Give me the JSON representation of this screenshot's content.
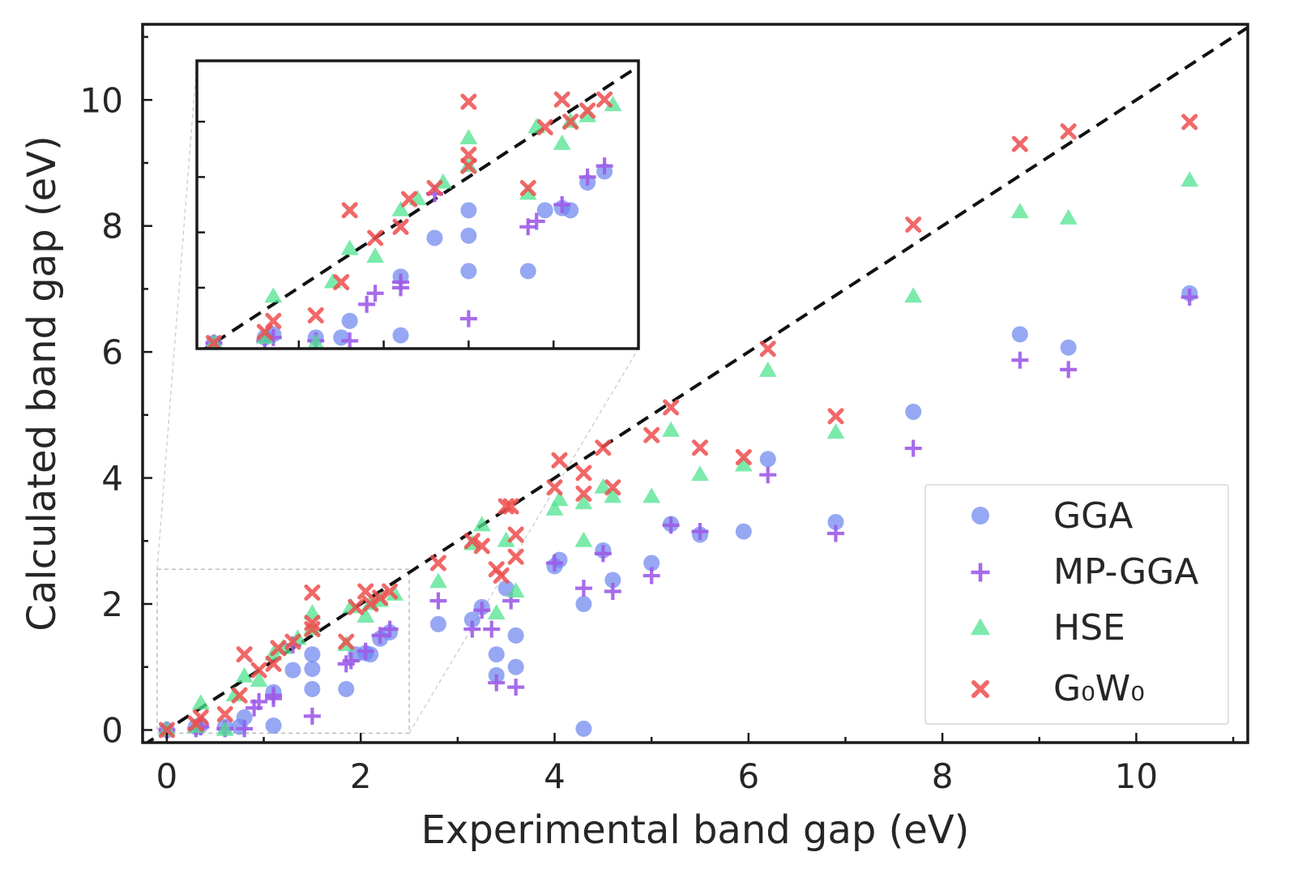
{
  "chart_data": {
    "type": "scatter",
    "title": "",
    "xlabel": "Experimental band gap (eV)",
    "ylabel": "Calculated band gap (eV)",
    "xlim": [
      -0.25,
      11.15
    ],
    "ylim": [
      -0.2,
      11.2
    ],
    "xticks": [
      0,
      2,
      4,
      6,
      8,
      10
    ],
    "yticks": [
      0,
      2,
      4,
      6,
      8,
      10
    ],
    "diagonal": "y = x (dashed)",
    "legend_position": "lower-right",
    "colors": {
      "GGA": "#6e86ee",
      "MP-GGA": "#9d5be8",
      "HSE": "#4fe38f",
      "G0W0": "#ee4d4d"
    },
    "series": [
      {
        "name": "GGA",
        "label": "GGA",
        "marker": "circle",
        "points": [
          [
            0,
            0
          ],
          [
            0.3,
            0.05
          ],
          [
            0.35,
            0.08
          ],
          [
            0.6,
            0.05
          ],
          [
            0.75,
            0.05
          ],
          [
            0.8,
            0.2
          ],
          [
            1.1,
            0.6
          ],
          [
            1.1,
            0.07
          ],
          [
            1.3,
            0.95
          ],
          [
            1.5,
            1.2
          ],
          [
            1.5,
            0.97
          ],
          [
            1.5,
            0.65
          ],
          [
            1.85,
            0.65
          ],
          [
            1.95,
            1.2
          ],
          [
            2.05,
            1.22
          ],
          [
            2.1,
            1.2
          ],
          [
            2.2,
            1.45
          ],
          [
            2.3,
            1.55
          ],
          [
            2.8,
            1.68
          ],
          [
            3.15,
            1.75
          ],
          [
            3.25,
            1.95
          ],
          [
            3.4,
            1.2
          ],
          [
            3.4,
            0.87
          ],
          [
            3.5,
            2.25
          ],
          [
            3.6,
            1.5
          ],
          [
            3.6,
            1.0
          ],
          [
            4.0,
            2.6
          ],
          [
            4.05,
            2.7
          ],
          [
            4.3,
            2.0
          ],
          [
            4.3,
            0.02
          ],
          [
            4.5,
            2.85
          ],
          [
            4.6,
            2.38
          ],
          [
            5.0,
            2.65
          ],
          [
            5.2,
            3.27
          ],
          [
            5.5,
            3.1
          ],
          [
            5.95,
            3.15
          ],
          [
            6.2,
            4.3
          ],
          [
            6.9,
            3.3
          ],
          [
            7.7,
            5.05
          ],
          [
            8.8,
            6.28
          ],
          [
            9.3,
            6.07
          ],
          [
            10.55,
            6.93
          ]
        ]
      },
      {
        "name": "MP-GGA",
        "label": "MP-GGA",
        "marker": "plus",
        "points": [
          [
            0,
            0
          ],
          [
            0.3,
            0.02
          ],
          [
            0.35,
            0.05
          ],
          [
            0.6,
            0.02
          ],
          [
            0.8,
            0.02
          ],
          [
            0.9,
            0.35
          ],
          [
            0.95,
            0.45
          ],
          [
            1.1,
            0.55
          ],
          [
            1.1,
            0.5
          ],
          [
            1.3,
            1.35
          ],
          [
            1.5,
            0.22
          ],
          [
            1.85,
            1.05
          ],
          [
            1.9,
            1.1
          ],
          [
            2.05,
            1.25
          ],
          [
            2.2,
            1.5
          ],
          [
            2.3,
            1.6
          ],
          [
            2.8,
            2.05
          ],
          [
            3.15,
            1.6
          ],
          [
            3.25,
            1.9
          ],
          [
            3.35,
            1.6
          ],
          [
            3.4,
            0.75
          ],
          [
            3.55,
            2.05
          ],
          [
            3.6,
            0.68
          ],
          [
            4.0,
            2.65
          ],
          [
            4.3,
            2.25
          ],
          [
            4.5,
            2.8
          ],
          [
            4.6,
            2.2
          ],
          [
            5.0,
            2.45
          ],
          [
            5.2,
            3.25
          ],
          [
            5.5,
            3.15
          ],
          [
            6.2,
            4.05
          ],
          [
            6.9,
            3.12
          ],
          [
            7.7,
            4.47
          ],
          [
            8.8,
            5.87
          ],
          [
            9.3,
            5.72
          ],
          [
            10.55,
            6.87
          ]
        ]
      },
      {
        "name": "HSE",
        "label": "HSE",
        "marker": "triangle",
        "points": [
          [
            0,
            0
          ],
          [
            0.3,
            0.05
          ],
          [
            0.35,
            0.42
          ],
          [
            0.6,
            0
          ],
          [
            0.7,
            0.55
          ],
          [
            0.8,
            0.85
          ],
          [
            0.95,
            0.78
          ],
          [
            1.1,
            1.2
          ],
          [
            1.2,
            1.3
          ],
          [
            1.35,
            1.45
          ],
          [
            1.5,
            1.85
          ],
          [
            1.5,
            1.6
          ],
          [
            1.85,
            1.35
          ],
          [
            1.9,
            1.95
          ],
          [
            2.05,
            1.8
          ],
          [
            2.1,
            2.0
          ],
          [
            2.2,
            2.05
          ],
          [
            2.35,
            2.15
          ],
          [
            2.8,
            2.35
          ],
          [
            3.15,
            2.95
          ],
          [
            3.25,
            3.25
          ],
          [
            3.4,
            1.85
          ],
          [
            3.5,
            3.0
          ],
          [
            3.6,
            2.2
          ],
          [
            4.0,
            3.5
          ],
          [
            4.05,
            3.65
          ],
          [
            4.3,
            3.0
          ],
          [
            4.3,
            3.6
          ],
          [
            4.5,
            3.85
          ],
          [
            4.6,
            3.7
          ],
          [
            5.0,
            3.7
          ],
          [
            5.2,
            4.75
          ],
          [
            5.5,
            4.05
          ],
          [
            5.95,
            4.2
          ],
          [
            6.2,
            5.7
          ],
          [
            6.9,
            4.72
          ],
          [
            7.7,
            6.88
          ],
          [
            8.8,
            8.22
          ],
          [
            9.3,
            8.12
          ],
          [
            10.55,
            8.72
          ]
        ]
      },
      {
        "name": "G0W0",
        "label": "G₀W₀",
        "marker": "x",
        "points": [
          [
            0,
            0
          ],
          [
            0.3,
            0.1
          ],
          [
            0.35,
            0.2
          ],
          [
            0.6,
            0.25
          ],
          [
            0.75,
            0.55
          ],
          [
            0.8,
            1.2
          ],
          [
            0.95,
            0.95
          ],
          [
            1.1,
            1.05
          ],
          [
            1.15,
            1.3
          ],
          [
            1.3,
            1.4
          ],
          [
            1.5,
            2.18
          ],
          [
            1.5,
            1.7
          ],
          [
            1.5,
            1.6
          ],
          [
            1.85,
            1.4
          ],
          [
            1.95,
            1.95
          ],
          [
            2.05,
            2.2
          ],
          [
            2.1,
            2.0
          ],
          [
            2.2,
            2.1
          ],
          [
            2.3,
            2.2
          ],
          [
            2.8,
            2.65
          ],
          [
            3.15,
            3.0
          ],
          [
            3.25,
            2.92
          ],
          [
            3.4,
            2.55
          ],
          [
            3.45,
            2.45
          ],
          [
            3.5,
            3.55
          ],
          [
            3.55,
            3.55
          ],
          [
            3.6,
            3.1
          ],
          [
            3.6,
            2.75
          ],
          [
            4.0,
            3.85
          ],
          [
            4.05,
            4.28
          ],
          [
            4.3,
            4.08
          ],
          [
            4.3,
            3.75
          ],
          [
            4.5,
            4.48
          ],
          [
            4.6,
            3.85
          ],
          [
            5.0,
            4.68
          ],
          [
            5.2,
            5.12
          ],
          [
            5.5,
            4.48
          ],
          [
            5.95,
            4.33
          ],
          [
            6.2,
            6.05
          ],
          [
            6.9,
            4.98
          ],
          [
            7.7,
            8.02
          ],
          [
            8.8,
            9.3
          ],
          [
            9.3,
            9.5
          ],
          [
            10.55,
            9.65
          ]
        ]
      }
    ],
    "inset": {
      "xlim": [
        -0.1,
        2.5
      ],
      "ylim": [
        -0.05,
        2.55
      ],
      "source_region": "dashed rectangle at lower-left of main plot"
    }
  }
}
